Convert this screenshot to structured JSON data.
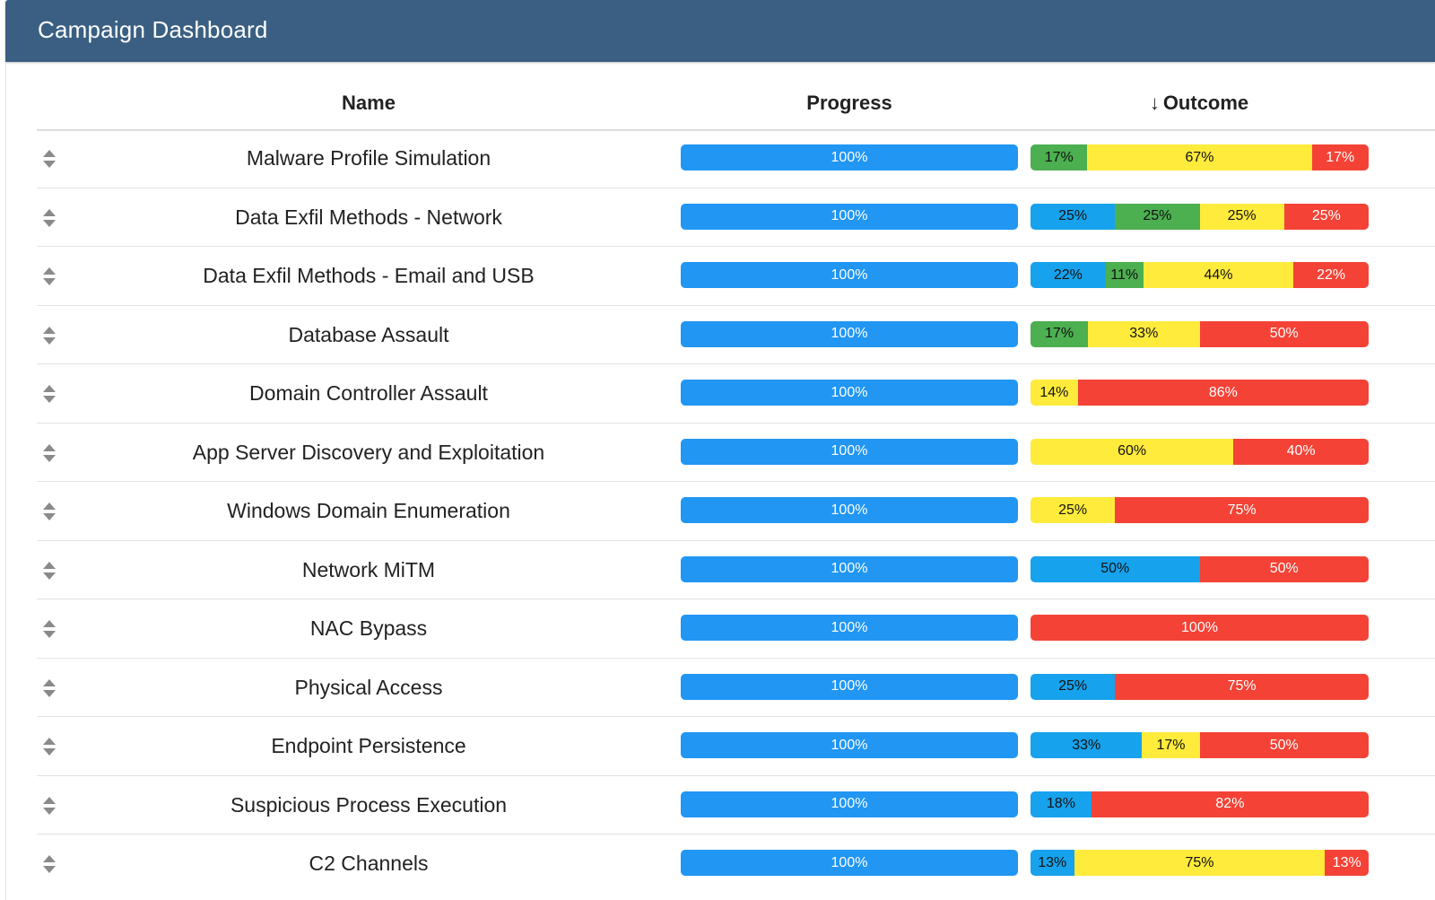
{
  "header": {
    "title": "Campaign Dashboard"
  },
  "table": {
    "columns": {
      "name": "Name",
      "progress": "Progress",
      "outcome_sort_icon": "↓",
      "outcome": "Outcome"
    },
    "colors": {
      "progress": "#2196f3",
      "blue": "#16a2ec",
      "green": "#4caf50",
      "yellow": "#ffeb3b",
      "red": "#f44336"
    },
    "rows": [
      {
        "name": "Malware Profile Simulation",
        "progress": 100,
        "progress_label": "100%",
        "outcome": [
          {
            "color": "green",
            "value": 17,
            "label": "17%"
          },
          {
            "color": "yellow",
            "value": 67,
            "label": "67%"
          },
          {
            "color": "red",
            "value": 17,
            "label": "17%"
          }
        ]
      },
      {
        "name": "Data Exfil Methods - Network",
        "progress": 100,
        "progress_label": "100%",
        "outcome": [
          {
            "color": "blue",
            "value": 25,
            "label": "25%"
          },
          {
            "color": "green",
            "value": 25,
            "label": "25%"
          },
          {
            "color": "yellow",
            "value": 25,
            "label": "25%"
          },
          {
            "color": "red",
            "value": 25,
            "label": "25%"
          }
        ]
      },
      {
        "name": "Data Exfil Methods - Email and USB",
        "progress": 100,
        "progress_label": "100%",
        "outcome": [
          {
            "color": "blue",
            "value": 22,
            "label": "22%"
          },
          {
            "color": "green",
            "value": 11,
            "label": "11%"
          },
          {
            "color": "yellow",
            "value": 44,
            "label": "44%"
          },
          {
            "color": "red",
            "value": 22,
            "label": "22%"
          }
        ]
      },
      {
        "name": "Database Assault",
        "progress": 100,
        "progress_label": "100%",
        "outcome": [
          {
            "color": "green",
            "value": 17,
            "label": "17%"
          },
          {
            "color": "yellow",
            "value": 33,
            "label": "33%"
          },
          {
            "color": "red",
            "value": 50,
            "label": "50%"
          }
        ]
      },
      {
        "name": "Domain Controller Assault",
        "progress": 100,
        "progress_label": "100%",
        "outcome": [
          {
            "color": "yellow",
            "value": 14,
            "label": "14%"
          },
          {
            "color": "red",
            "value": 86,
            "label": "86%"
          }
        ]
      },
      {
        "name": "App Server Discovery and Exploitation",
        "progress": 100,
        "progress_label": "100%",
        "outcome": [
          {
            "color": "yellow",
            "value": 60,
            "label": "60%"
          },
          {
            "color": "red",
            "value": 40,
            "label": "40%"
          }
        ]
      },
      {
        "name": "Windows Domain Enumeration",
        "progress": 100,
        "progress_label": "100%",
        "outcome": [
          {
            "color": "yellow",
            "value": 25,
            "label": "25%"
          },
          {
            "color": "red",
            "value": 75,
            "label": "75%"
          }
        ]
      },
      {
        "name": "Network MiTM",
        "progress": 100,
        "progress_label": "100%",
        "outcome": [
          {
            "color": "blue",
            "value": 50,
            "label": "50%"
          },
          {
            "color": "red",
            "value": 50,
            "label": "50%"
          }
        ]
      },
      {
        "name": "NAC Bypass",
        "progress": 100,
        "progress_label": "100%",
        "outcome": [
          {
            "color": "red",
            "value": 100,
            "label": "100%"
          }
        ]
      },
      {
        "name": "Physical Access",
        "progress": 100,
        "progress_label": "100%",
        "outcome": [
          {
            "color": "blue",
            "value": 25,
            "label": "25%"
          },
          {
            "color": "red",
            "value": 75,
            "label": "75%"
          }
        ]
      },
      {
        "name": "Endpoint Persistence",
        "progress": 100,
        "progress_label": "100%",
        "outcome": [
          {
            "color": "blue",
            "value": 33,
            "label": "33%"
          },
          {
            "color": "yellow",
            "value": 17,
            "label": "17%"
          },
          {
            "color": "red",
            "value": 50,
            "label": "50%"
          }
        ]
      },
      {
        "name": "Suspicious Process Execution",
        "progress": 100,
        "progress_label": "100%",
        "outcome": [
          {
            "color": "blue",
            "value": 18,
            "label": "18%"
          },
          {
            "color": "red",
            "value": 82,
            "label": "82%"
          }
        ]
      },
      {
        "name": "C2 Channels",
        "progress": 100,
        "progress_label": "100%",
        "outcome": [
          {
            "color": "blue",
            "value": 13,
            "label": "13%"
          },
          {
            "color": "yellow",
            "value": 75,
            "label": "75%"
          },
          {
            "color": "red",
            "value": 13,
            "label": "13%"
          }
        ]
      }
    ]
  }
}
